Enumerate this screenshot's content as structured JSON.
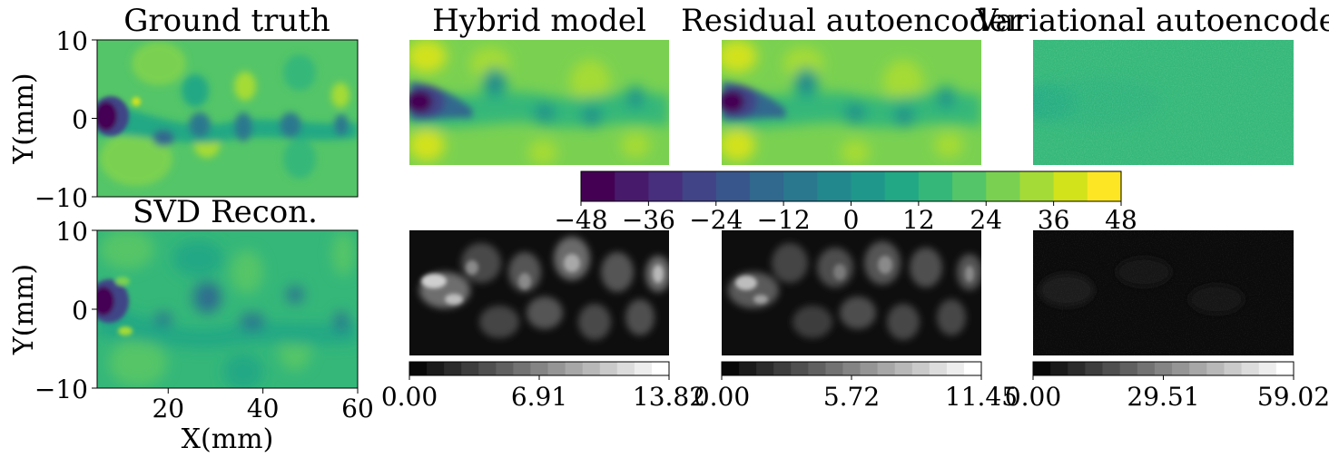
{
  "panels": {
    "ground_truth": {
      "title": "Ground truth"
    },
    "hybrid_model": {
      "title": "Hybrid model"
    },
    "residual_autoencoder": {
      "title": "Residual autoencoder"
    },
    "variational_autoencoder": {
      "title": "Variational autoencoder"
    },
    "svd_recon": {
      "title": "SVD Recon."
    }
  },
  "chart_data": {
    "type": "heatmap",
    "axes": {
      "xlabel": "X(mm)",
      "ylabel": "Y(mm)",
      "x_ticks": [
        "20",
        "40",
        "60"
      ],
      "y_ticks": [
        "10",
        "0",
        "−10"
      ],
      "xlim": [
        5,
        60
      ],
      "ylim": [
        -10,
        10
      ]
    },
    "field_colorbar": {
      "colormap": "viridis",
      "levels": 16,
      "range": [
        -48,
        48
      ],
      "tick_labels": [
        "−48",
        "−36",
        "−24",
        "−12",
        "0",
        "12",
        "24",
        "36",
        "48"
      ]
    },
    "error_colorbars": [
      {
        "panel": "Hybrid model",
        "colormap": "gray",
        "range": [
          0.0,
          13.82
        ],
        "tick_labels": [
          "0.00",
          "6.91",
          "13.82"
        ]
      },
      {
        "panel": "Residual autoencoder",
        "colormap": "gray",
        "range": [
          0.0,
          11.45
        ],
        "tick_labels": [
          "0.00",
          "5.72",
          "11.45"
        ]
      },
      {
        "panel": "Variational autoencoder",
        "colormap": "gray",
        "range": [
          0.0,
          59.02
        ],
        "tick_labels": [
          "0.00",
          "29.51",
          "59.02"
        ]
      }
    ],
    "colors": {
      "viridis": [
        "#440154",
        "#481a6c",
        "#472f7d",
        "#414487",
        "#39568c",
        "#31688e",
        "#2a788e",
        "#23888e",
        "#1f988b",
        "#22a884",
        "#35b779",
        "#54c568",
        "#7ad151",
        "#a5db36",
        "#d2e21b",
        "#fde725"
      ]
    }
  }
}
